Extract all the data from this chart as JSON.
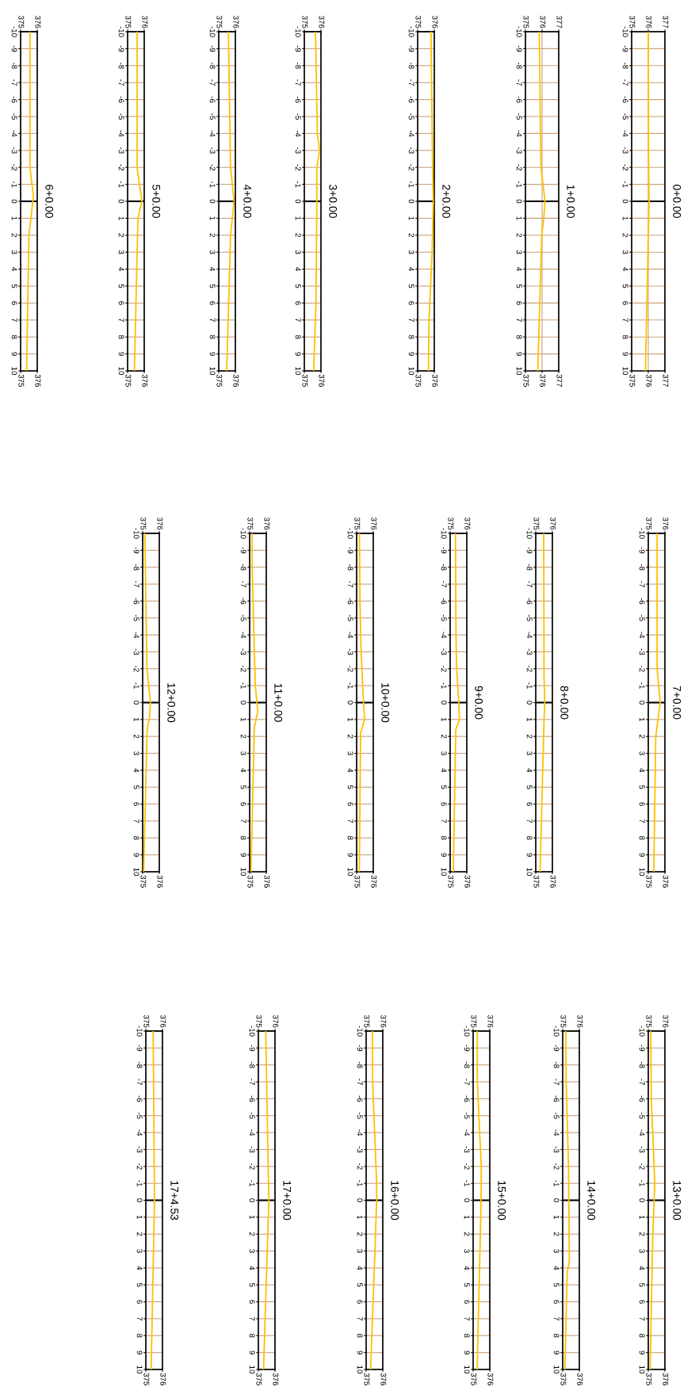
{
  "chart_data": [
    {
      "type": "line",
      "title": "0+0.00",
      "values": [
        -10,
        -2,
        0,
        2,
        10
      ],
      "x": [
        376.0,
        376.02,
        376.05,
        376.0,
        375.83
      ],
      "color": "#ffc000",
      "ylim": [
        10,
        -10
      ],
      "yticks": [
        -10,
        -9,
        -8,
        -7,
        -6,
        -5,
        -4,
        -3,
        -2,
        -1,
        0,
        1,
        2,
        3,
        4,
        5,
        6,
        7,
        8,
        9,
        10
      ],
      "xlim": [
        375,
        377
      ],
      "xticks": [
        375,
        376,
        377
      ],
      "x2lim": [
        375,
        377
      ],
      "x2ticks": [
        375,
        376,
        377
      ],
      "grid": true,
      "ref_lines": [
        {
          "axis": "y",
          "value": 0,
          "color": "#000000"
        }
      ]
    },
    {
      "type": "line",
      "title": "1+0.00",
      "values": [
        -10,
        -2,
        0,
        1,
        2,
        10
      ],
      "x": [
        375.83,
        375.93,
        376.18,
        376.1,
        375.98,
        375.74
      ],
      "color": "#ffc000",
      "ylim": [
        10,
        -10
      ],
      "yticks": [
        -10,
        -9,
        -8,
        -7,
        -6,
        -5,
        -4,
        -3,
        -2,
        -1,
        0,
        1,
        2,
        3,
        4,
        5,
        6,
        7,
        8,
        9,
        10
      ],
      "xlim": [
        375,
        377
      ],
      "xticks": [
        375,
        376,
        377
      ],
      "x2lim": [
        375,
        377
      ],
      "x2ticks": [
        375,
        376,
        377
      ],
      "grid": true,
      "ref_lines": [
        {
          "axis": "y",
          "value": 0,
          "color": "#000000"
        }
      ]
    },
    {
      "type": "line",
      "title": "2+0.00",
      "values": [
        -10,
        -2,
        0,
        3,
        7,
        10
      ],
      "x": [
        375.8,
        375.9,
        375.94,
        375.87,
        375.68,
        375.65
      ],
      "color": "#ffc000",
      "ylim": [
        10,
        -10
      ],
      "yticks": [
        -10,
        -9,
        -8,
        -7,
        -6,
        -5,
        -4,
        -3,
        -2,
        -1,
        0,
        1,
        2,
        3,
        4,
        5,
        6,
        7,
        8,
        9,
        10
      ],
      "xlim": [
        375,
        376
      ],
      "xticks": [
        375,
        376
      ],
      "x2lim": [
        375,
        376
      ],
      "x2ticks": [
        375,
        376
      ],
      "grid": true,
      "ref_lines": [
        {
          "axis": "y",
          "value": 0,
          "color": "#000000"
        }
      ]
    },
    {
      "type": "line",
      "title": "3+0.00",
      "values": [
        -10,
        -4,
        -3,
        -2,
        0,
        6,
        10
      ],
      "x": [
        375.67,
        375.78,
        375.92,
        375.75,
        375.75,
        375.7,
        375.56
      ],
      "color": "#ffc000",
      "ylim": [
        10,
        -10
      ],
      "yticks": [
        -10,
        -9,
        -8,
        -7,
        -6,
        -5,
        -4,
        -3,
        -2,
        -1,
        0,
        1,
        2,
        3,
        4,
        5,
        6,
        7,
        8,
        9,
        10
      ],
      "xlim": [
        375,
        376
      ],
      "xticks": [
        375,
        376
      ],
      "x2lim": [
        375,
        376
      ],
      "x2ticks": [
        375,
        376
      ],
      "grid": true,
      "ref_lines": [
        {
          "axis": "y",
          "value": 0,
          "color": "#000000"
        }
      ]
    },
    {
      "type": "line",
      "title": "4+0.00",
      "values": [
        -10,
        -2,
        0,
        2,
        10
      ],
      "x": [
        375.58,
        375.71,
        375.92,
        375.71,
        375.48
      ],
      "color": "#ffc000",
      "ylim": [
        10,
        -10
      ],
      "yticks": [
        -10,
        -9,
        -8,
        -7,
        -6,
        -5,
        -4,
        -3,
        -2,
        -1,
        0,
        1,
        2,
        3,
        4,
        5,
        6,
        7,
        8,
        9,
        10
      ],
      "xlim": [
        375,
        376
      ],
      "xticks": [
        375,
        376
      ],
      "x2lim": [
        375,
        376
      ],
      "x2ticks": [
        375,
        376
      ],
      "grid": true,
      "ref_lines": [
        {
          "axis": "y",
          "value": 0,
          "color": "#000000"
        }
      ]
    },
    {
      "type": "line",
      "title": "5+0.00",
      "values": [
        -10,
        -2,
        0,
        1,
        10
      ],
      "x": [
        375.57,
        375.57,
        375.86,
        375.62,
        375.41
      ],
      "color": "#ffc000",
      "ylim": [
        10,
        -10
      ],
      "yticks": [
        -10,
        -9,
        -8,
        -7,
        -6,
        -5,
        -4,
        -3,
        -2,
        -1,
        0,
        1,
        2,
        3,
        4,
        5,
        6,
        7,
        8,
        9,
        10
      ],
      "xlim": [
        375,
        376
      ],
      "xticks": [
        375,
        376
      ],
      "x2lim": [
        375,
        376
      ],
      "x2ticks": [
        375,
        376
      ],
      "grid": true,
      "ref_lines": [
        {
          "axis": "y",
          "value": 0,
          "color": "#000000"
        }
      ]
    },
    {
      "type": "line",
      "title": "6+0.00",
      "values": [
        -10,
        -2,
        -0.3,
        2,
        10
      ],
      "x": [
        375.56,
        375.56,
        375.77,
        375.5,
        375.36
      ],
      "color": "#ffc000",
      "ylim": [
        10,
        -10
      ],
      "yticks": [
        -10,
        -9,
        -8,
        -7,
        -6,
        -5,
        -4,
        -3,
        -2,
        -1,
        0,
        1,
        2,
        3,
        4,
        5,
        6,
        7,
        8,
        9,
        10
      ],
      "xlim": [
        375,
        376
      ],
      "xticks": [
        375,
        376
      ],
      "x2lim": [
        375,
        376
      ],
      "x2ticks": [
        375,
        376
      ],
      "grid": true,
      "ref_lines": [
        {
          "axis": "y",
          "value": 0,
          "color": "#000000"
        }
      ]
    },
    {
      "type": "line",
      "title": "7+0.00",
      "values": [
        -10,
        -2,
        0,
        2,
        10
      ],
      "x": [
        375.53,
        375.53,
        375.72,
        375.45,
        375.33
      ],
      "color": "#ffc000",
      "ylim": [
        10,
        -10
      ],
      "yticks": [
        -10,
        -9,
        -8,
        -7,
        -6,
        -5,
        -4,
        -3,
        -2,
        -1,
        0,
        1,
        2,
        3,
        4,
        5,
        6,
        7,
        8,
        9,
        10
      ],
      "xlim": [
        375,
        376
      ],
      "xticks": [
        375,
        376
      ],
      "x2lim": [
        375,
        376
      ],
      "x2ticks": [
        375,
        376
      ],
      "grid": true,
      "ref_lines": [
        {
          "axis": "y",
          "value": 0,
          "color": "#000000"
        }
      ]
    },
    {
      "type": "line",
      "title": "8+0.00",
      "values": [
        -10,
        -1.5,
        0,
        1,
        10
      ],
      "x": [
        375.48,
        375.5,
        375.54,
        375.5,
        375.26
      ],
      "color": "#ffc000",
      "ylim": [
        10,
        -10
      ],
      "yticks": [
        -10,
        -9,
        -8,
        -7,
        -6,
        -5,
        -4,
        -3,
        -2,
        -1,
        0,
        1,
        2,
        3,
        4,
        5,
        6,
        7,
        8,
        9,
        10
      ],
      "xlim": [
        375,
        376
      ],
      "xticks": [
        375,
        376
      ],
      "x2lim": [
        375,
        376
      ],
      "x2ticks": [
        375,
        376
      ],
      "grid": true,
      "ref_lines": [
        {
          "axis": "y",
          "value": 0,
          "color": "#000000"
        }
      ]
    },
    {
      "type": "line",
      "title": "9+0.00",
      "values": [
        -10,
        -4,
        -2,
        0,
        1,
        1.6,
        10
      ],
      "x": [
        375.32,
        375.35,
        375.39,
        375.52,
        375.56,
        375.34,
        375.19
      ],
      "color": "#ffc000",
      "ylim": [
        10,
        -10
      ],
      "yticks": [
        -10,
        -9,
        -8,
        -7,
        -6,
        -5,
        -4,
        -3,
        -2,
        -1,
        0,
        1,
        2,
        3,
        4,
        5,
        6,
        7,
        8,
        9,
        10
      ],
      "xlim": [
        375,
        376
      ],
      "xticks": [
        375,
        376
      ],
      "x2lim": [
        375,
        376
      ],
      "x2ticks": [
        375,
        376
      ],
      "grid": true,
      "ref_lines": [
        {
          "axis": "y",
          "value": 0,
          "color": "#000000"
        }
      ]
    },
    {
      "type": "line",
      "title": "10+0.00",
      "values": [
        -10,
        -6,
        -3,
        0,
        1,
        1.8,
        10
      ],
      "x": [
        375.17,
        375.2,
        375.27,
        375.41,
        375.48,
        375.24,
        375.16
      ],
      "color": "#ffc000",
      "ylim": [
        10,
        -10
      ],
      "yticks": [
        -10,
        -9,
        -8,
        -7,
        -6,
        -5,
        -4,
        -3,
        -2,
        -1,
        0,
        1,
        2,
        3,
        4,
        5,
        6,
        7,
        8,
        9,
        10
      ],
      "xlim": [
        375,
        376
      ],
      "xticks": [
        375,
        376
      ],
      "x2lim": [
        375,
        376
      ],
      "x2ticks": [
        375,
        376
      ],
      "grid": true,
      "ref_lines": [
        {
          "axis": "y",
          "value": 0,
          "color": "#000000"
        }
      ]
    },
    {
      "type": "line",
      "title": "11+0.00",
      "values": [
        -10,
        -8,
        -1,
        0.5,
        1.5,
        10
      ],
      "x": [
        375.15,
        375.15,
        375.34,
        375.49,
        375.28,
        375.08
      ],
      "color": "#ffc000",
      "ylim": [
        10,
        -10
      ],
      "yticks": [
        -10,
        -9,
        -8,
        -7,
        -6,
        -5,
        -4,
        -3,
        -2,
        -1,
        0,
        1,
        2,
        3,
        4,
        5,
        6,
        7,
        8,
        9,
        10
      ],
      "xlim": [
        375,
        376
      ],
      "xticks": [
        375,
        376
      ],
      "x2lim": [
        375,
        376
      ],
      "x2ticks": [
        375,
        376
      ],
      "grid": true,
      "ref_lines": [
        {
          "axis": "y",
          "value": 0,
          "color": "#000000"
        }
      ]
    },
    {
      "type": "line",
      "title": "12+0.00",
      "values": [
        -10,
        -2,
        0,
        0.8,
        1.6,
        10
      ],
      "x": [
        375.13,
        375.26,
        375.47,
        375.42,
        375.27,
        375.06
      ],
      "color": "#ffc000",
      "ylim": [
        10,
        -10
      ],
      "yticks": [
        -10,
        -9,
        -8,
        -7,
        -6,
        -5,
        -4,
        -3,
        -2,
        -1,
        0,
        1,
        2,
        3,
        4,
        5,
        6,
        7,
        8,
        9,
        10
      ],
      "xlim": [
        375,
        376
      ],
      "xticks": [
        375,
        376
      ],
      "x2lim": [
        375,
        376
      ],
      "x2ticks": [
        375,
        376
      ],
      "grid": true,
      "ref_lines": [
        {
          "axis": "y",
          "value": 0,
          "color": "#000000"
        }
      ]
    },
    {
      "type": "line",
      "title": "13+0.00",
      "values": [
        -10,
        -6,
        -1,
        0,
        2,
        10
      ],
      "x": [
        375.15,
        375.18,
        375.39,
        375.35,
        375.27,
        375.11
      ],
      "color": "#ffc000",
      "ylim": [
        10,
        -10
      ],
      "yticks": [
        -10,
        -9,
        -8,
        -7,
        -6,
        -5,
        -4,
        -3,
        -2,
        -1,
        0,
        1,
        2,
        3,
        4,
        5,
        6,
        7,
        8,
        9,
        10
      ],
      "xlim": [
        375,
        376
      ],
      "xticks": [
        375,
        376
      ],
      "x2lim": [
        375,
        376
      ],
      "x2ticks": [
        375,
        376
      ],
      "grid": true,
      "ref_lines": [
        {
          "axis": "y",
          "value": 0,
          "color": "#000000"
        }
      ]
    },
    {
      "type": "line",
      "title": "14+0.00",
      "values": [
        -10,
        -7,
        -2,
        3.6,
        4.3,
        10
      ],
      "x": [
        375.19,
        375.21,
        375.35,
        375.4,
        375.27,
        375.13
      ],
      "color": "#ffc000",
      "ylim": [
        10,
        -10
      ],
      "yticks": [
        -10,
        -9,
        -8,
        -7,
        -6,
        -5,
        -4,
        -3,
        -2,
        -1,
        0,
        1,
        2,
        3,
        4,
        5,
        6,
        7,
        8,
        9,
        10
      ],
      "xlim": [
        375,
        376
      ],
      "xticks": [
        375,
        376
      ],
      "x2lim": [
        375,
        376
      ],
      "x2ticks": [
        375,
        376
      ],
      "grid": true,
      "ref_lines": [
        {
          "axis": "y",
          "value": 0,
          "color": "#000000"
        }
      ]
    },
    {
      "type": "line",
      "title": "15+0.00",
      "values": [
        -10,
        -7,
        -2,
        0,
        3,
        10
      ],
      "x": [
        375.25,
        375.25,
        375.49,
        375.48,
        375.41,
        375.24
      ],
      "color": "#ffc000",
      "ylim": [
        10,
        -10
      ],
      "yticks": [
        -10,
        -9,
        -8,
        -7,
        -6,
        -5,
        -4,
        -3,
        -2,
        -1,
        0,
        1,
        2,
        3,
        4,
        5,
        6,
        7,
        8,
        9,
        10
      ],
      "xlim": [
        375,
        376
      ],
      "xticks": [
        375,
        376
      ],
      "x2lim": [
        375,
        376
      ],
      "x2ticks": [
        375,
        376
      ],
      "grid": true,
      "ref_lines": [
        {
          "axis": "y",
          "value": 0,
          "color": "#000000"
        }
      ]
    },
    {
      "type": "line",
      "title": "16+0.00",
      "values": [
        -10,
        -7,
        -1,
        0,
        3,
        10
      ],
      "x": [
        375.38,
        375.39,
        375.63,
        375.63,
        375.53,
        375.27
      ],
      "color": "#ffc000",
      "ylim": [
        10,
        -10
      ],
      "yticks": [
        -10,
        -9,
        -8,
        -7,
        -6,
        -5,
        -4,
        -3,
        -2,
        -1,
        0,
        1,
        2,
        3,
        4,
        5,
        6,
        7,
        8,
        9,
        10
      ],
      "xlim": [
        375,
        376
      ],
      "xticks": [
        375,
        376
      ],
      "x2lim": [
        375,
        376
      ],
      "x2ticks": [
        375,
        376
      ],
      "grid": true,
      "ref_lines": [
        {
          "axis": "y",
          "value": 0,
          "color": "#000000"
        }
      ]
    },
    {
      "type": "line",
      "title": "17+0.00",
      "values": [
        -10,
        0,
        10
      ],
      "x": [
        375.44,
        375.63,
        375.31
      ],
      "color": "#ffc000",
      "ylim": [
        10,
        -10
      ],
      "yticks": [
        -10,
        -9,
        -8,
        -7,
        -6,
        -5,
        -4,
        -3,
        -2,
        -1,
        0,
        1,
        2,
        3,
        4,
        5,
        6,
        7,
        8,
        9,
        10
      ],
      "xlim": [
        375,
        376
      ],
      "xticks": [
        375,
        376
      ],
      "x2lim": [
        375,
        376
      ],
      "x2ticks": [
        375,
        376
      ],
      "grid": true,
      "ref_lines": [
        {
          "axis": "y",
          "value": 0,
          "color": "#000000"
        }
      ]
    },
    {
      "type": "line",
      "title": "17+4.53",
      "values": [
        -10,
        0,
        10
      ],
      "x": [
        375.44,
        375.52,
        375.32
      ],
      "color": "#ffc000",
      "ylim": [
        10,
        -10
      ],
      "yticks": [
        -10,
        -9,
        -8,
        -7,
        -6,
        -5,
        -4,
        -3,
        -2,
        -1,
        0,
        1,
        2,
        3,
        4,
        5,
        6,
        7,
        8,
        9,
        10
      ],
      "xlim": [
        375,
        376
      ],
      "xticks": [
        375,
        376
      ],
      "x2lim": [
        375,
        376
      ],
      "x2ticks": [
        375,
        376
      ],
      "grid": true,
      "ref_lines": [
        {
          "axis": "y",
          "value": 0,
          "color": "#000000"
        }
      ]
    }
  ]
}
